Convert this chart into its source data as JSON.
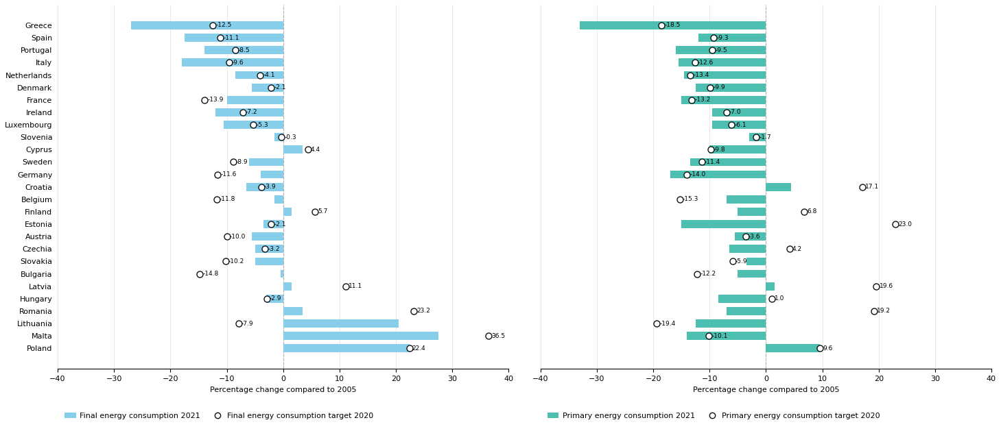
{
  "countries": [
    "Greece",
    "Spain",
    "Portugal",
    "Italy",
    "Netherlands",
    "Denmark",
    "France",
    "Ireland",
    "Luxembourg",
    "Slovenia",
    "Cyprus",
    "Sweden",
    "Germany",
    "Croatia",
    "Belgium",
    "Finland",
    "Estonia",
    "Austria",
    "Czechia",
    "Slovakia",
    "Bulgaria",
    "Latvia",
    "Hungary",
    "Romania",
    "Lithuania",
    "Malta",
    "Poland"
  ],
  "left_bars": [
    -27.0,
    -17.5,
    -14.0,
    -18.0,
    -8.5,
    -5.5,
    -10.0,
    -12.0,
    -10.5,
    -1.5,
    3.5,
    -6.0,
    -4.0,
    -6.5,
    -1.5,
    1.5,
    -3.5,
    -5.5,
    -5.0,
    -5.0,
    -0.5,
    1.5,
    -3.0,
    3.5,
    20.5,
    27.5,
    22.5
  ],
  "left_targets": [
    -12.5,
    -11.1,
    -8.5,
    -9.6,
    -4.1,
    -2.1,
    -13.9,
    -7.2,
    -5.3,
    -0.3,
    4.4,
    -8.9,
    -11.6,
    -3.9,
    -11.8,
    5.7,
    -2.1,
    -10.0,
    -3.2,
    -10.2,
    -14.8,
    11.1,
    -2.9,
    23.2,
    -7.9,
    36.5,
    22.4
  ],
  "right_bars": [
    -33.0,
    -12.0,
    -16.0,
    -15.5,
    -14.5,
    -12.5,
    -15.0,
    -9.5,
    -9.5,
    -3.0,
    -10.0,
    -13.5,
    -17.0,
    4.5,
    -7.0,
    -5.0,
    -15.0,
    -5.5,
    -6.5,
    -3.5,
    -5.0,
    1.5,
    -8.5,
    -7.0,
    -12.5,
    -14.0,
    9.6
  ],
  "right_targets": [
    -18.5,
    -9.3,
    -9.5,
    -12.6,
    -13.4,
    -9.9,
    -13.2,
    -7.0,
    -6.1,
    -1.7,
    -9.8,
    -11.4,
    -14.0,
    17.1,
    -15.3,
    6.8,
    23.0,
    -3.6,
    4.2,
    -5.9,
    -12.2,
    19.6,
    1.0,
    19.2,
    -19.4,
    -10.1,
    9.6
  ],
  "left_bar_color": "#87CEEB",
  "right_bar_color": "#4DBFB0",
  "target_edge_color": "#111111",
  "target_face_color": "white",
  "xlabel": "Percentage change compared to 2005",
  "xlim": [
    -40,
    40
  ],
  "xticks": [
    -40,
    -30,
    -20,
    -10,
    0,
    10,
    20,
    30,
    40
  ],
  "left_legend_bar": "Final energy consumption 2021",
  "left_legend_target": "Final energy consumption target 2020",
  "right_legend_bar": "Primary energy consumption 2021",
  "right_legend_target": "Primary energy consumption target 2020",
  "bar_height": 0.65,
  "marker_size": 6.5,
  "label_fontsize": 6.5,
  "tick_fontsize": 8,
  "xlabel_fontsize": 8
}
